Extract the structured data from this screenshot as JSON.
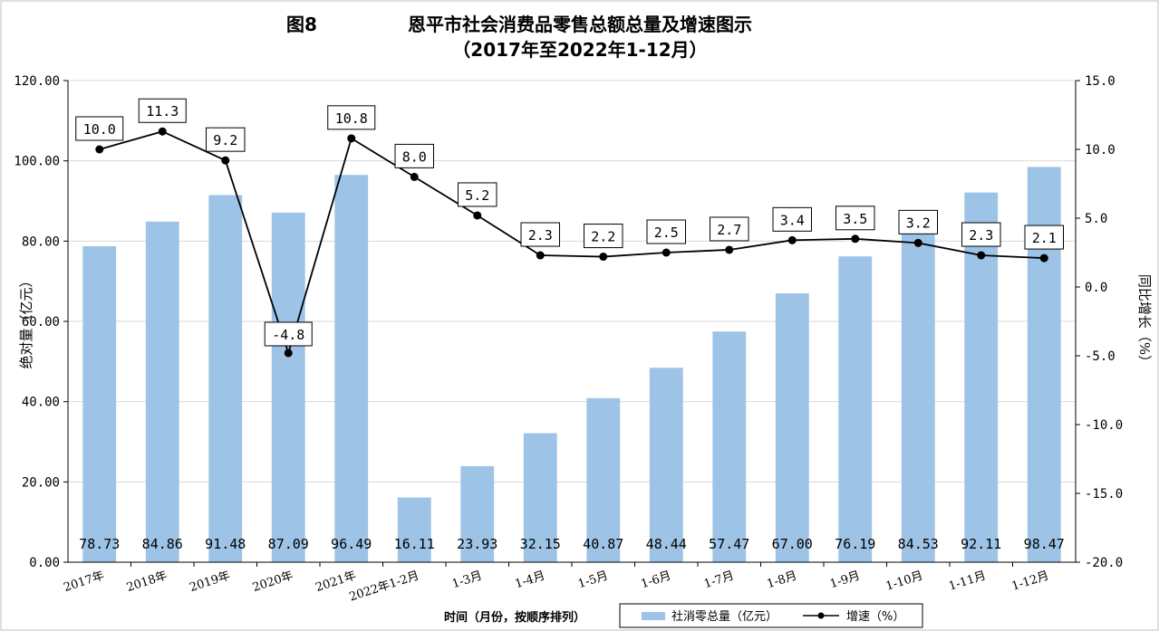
{
  "chart_data": {
    "type": "bar+line",
    "figure_label": "图8",
    "title": "恩平市社会消费品零售总额总量及增速图示",
    "subtitle": "（2017年至2022年1-12月）",
    "xlabel": "时间（月份，按顺序排列）",
    "ylabel_left": "绝对量（亿元）",
    "ylabel_right": "同比增长（%）",
    "ylim_left": [
      0,
      120
    ],
    "ylim_right": [
      -20,
      15
    ],
    "yticks_left": [
      "0.00",
      "20.00",
      "40.00",
      "60.00",
      "80.00",
      "100.00",
      "120.00"
    ],
    "yticks_right": [
      "-20.0",
      "-15.0",
      "-10.0",
      "-5.0",
      "0.0",
      "5.0",
      "10.0",
      "15.0"
    ],
    "categories": [
      "2017年",
      "2018年",
      "2019年",
      "2020年",
      "2021年",
      "2022年1-2月",
      "1-3月",
      "1-4月",
      "1-5月",
      "1-6月",
      "1-7月",
      "1-8月",
      "1-9月",
      "1-10月",
      "1-11月",
      "1-12月"
    ],
    "series": [
      {
        "name": "社消零总量（亿元）",
        "type": "bar",
        "axis": "left",
        "color": "#9DC3E6",
        "values": [
          78.73,
          84.86,
          91.48,
          87.09,
          96.49,
          16.11,
          23.93,
          32.15,
          40.87,
          48.44,
          57.47,
          67.0,
          76.19,
          84.53,
          92.11,
          98.47
        ],
        "labels": [
          "78.73",
          "84.86",
          "91.48",
          "87.09",
          "96.49",
          "16.11",
          "23.93",
          "32.15",
          "40.87",
          "48.44",
          "57.47",
          "67.00",
          "76.19",
          "84.53",
          "92.11",
          "98.47"
        ]
      },
      {
        "name": "增速（%）",
        "type": "line",
        "axis": "right",
        "color": "#000000",
        "values": [
          10.0,
          11.3,
          9.2,
          -4.8,
          10.8,
          8.0,
          5.2,
          2.3,
          2.2,
          2.5,
          2.7,
          3.4,
          3.5,
          3.2,
          2.3,
          2.1
        ],
        "labels": [
          "10.0",
          "11.3",
          "9.2",
          "-4.8",
          "10.8",
          "8.0",
          "5.2",
          "2.3",
          "2.2",
          "2.5",
          "2.7",
          "3.4",
          "3.5",
          "3.2",
          "2.3",
          "2.1"
        ]
      }
    ],
    "grid": true,
    "legend_position": "bottom-right"
  }
}
